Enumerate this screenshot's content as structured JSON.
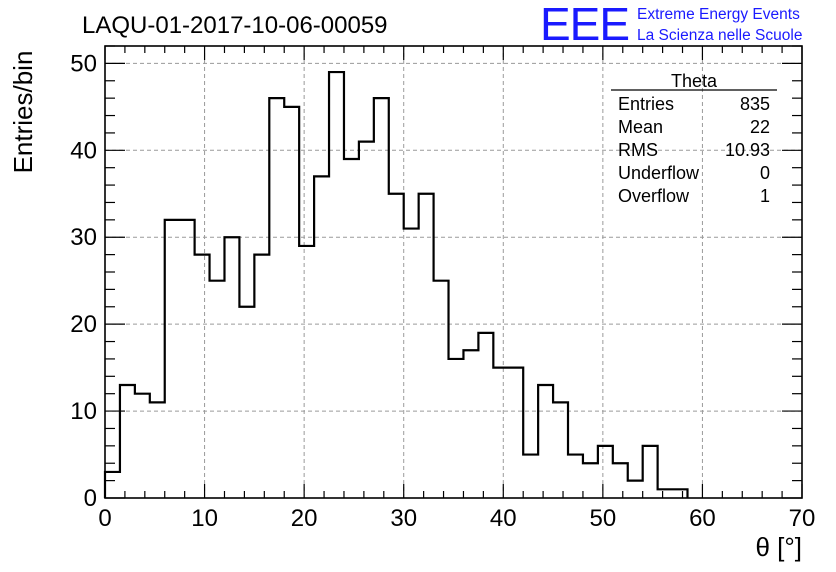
{
  "chart_data": {
    "type": "bar",
    "title": "LAQU-01-2017-10-06-00059",
    "xlabel": "θ [°]",
    "ylabel": "Entries/bin",
    "xlim": [
      0,
      70
    ],
    "ylim": [
      0,
      52
    ],
    "grid": true,
    "x_ticks": [
      "0",
      "10",
      "20",
      "30",
      "40",
      "50",
      "60",
      "70"
    ],
    "y_ticks": [
      "0",
      "10",
      "20",
      "30",
      "40",
      "50"
    ],
    "bin_width": 1.5,
    "bin_start": 0,
    "values": [
      3,
      13,
      12,
      11,
      32,
      32,
      28,
      25,
      30,
      22,
      28,
      46,
      45,
      29,
      37,
      49,
      39,
      41,
      46,
      35,
      31,
      35,
      25,
      16,
      17,
      19,
      15,
      15,
      5,
      13,
      11,
      5,
      4,
      6,
      4,
      2,
      6,
      1,
      1
    ],
    "stats": {
      "name": "Theta",
      "rows": [
        {
          "label": "Entries",
          "value": "835"
        },
        {
          "label": "Mean",
          "value": "22"
        },
        {
          "label": "RMS",
          "value": "10.93"
        },
        {
          "label": "Underflow",
          "value": "0"
        },
        {
          "label": "Overflow",
          "value": "1"
        }
      ]
    }
  },
  "logo": {
    "mark": "EEE",
    "line1": "Extreme Energy Events",
    "line2": "La Scienza nelle Scuole"
  },
  "colors": {
    "logo": "#1a1aff",
    "histogram": "#000000",
    "grid": "#9a9a9a"
  }
}
